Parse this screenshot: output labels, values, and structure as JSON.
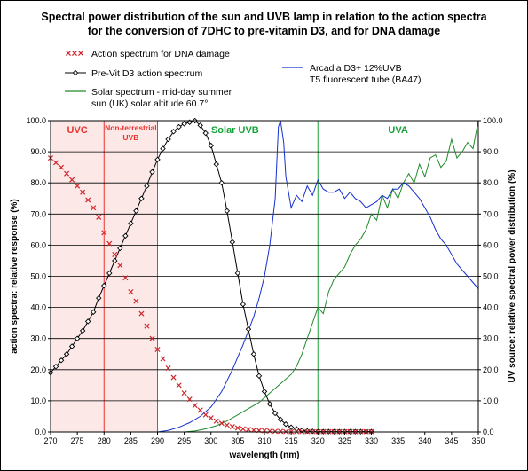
{
  "chart_data": {
    "type": "line",
    "title": "Spectral power distribution of the sun and UVB lamp in relation to the action spectra",
    "subtitle": "for the conversion of 7DHC to pre-vitamin D3, and for DNA damage",
    "xlabel": "wavelength (nm)",
    "ylabel_left": "action spectra: relative response (%)",
    "ylabel_right": "UV source: relative spectral power distribution (%)",
    "xlim": [
      270,
      350
    ],
    "ylim": [
      0,
      100
    ],
    "x_ticks": [
      "270",
      "275",
      "280",
      "285",
      "290",
      "295",
      "300",
      "305",
      "310",
      "315",
      "320",
      "325",
      "330",
      "335",
      "340",
      "345",
      "350"
    ],
    "y_ticks_left": [
      "0.0",
      "10.0",
      "20.0",
      "30.0",
      "40.0",
      "50.0",
      "60.0",
      "70.0",
      "80.0",
      "90.0",
      "100.0"
    ],
    "y_ticks_right": [
      "0.0",
      "10.0",
      "20.0",
      "30.0",
      "40.0",
      "50.0",
      "60.0",
      "70.0",
      "80.0",
      "90.0",
      "100.0"
    ],
    "grid": "horizontal",
    "regions": [
      {
        "label": "UVC",
        "from": 270,
        "to": 280,
        "color": "#fde8e8",
        "text_color": "#e8332f"
      },
      {
        "label": "Non-terrestrial UVB",
        "from": 280,
        "to": 290,
        "color": "#fde8e8",
        "text_color": "#e8332f"
      },
      {
        "label": "Solar UVB",
        "from": 290,
        "to": 320,
        "color": "#ffffff",
        "text_color": "#16a339"
      },
      {
        "label": "UVA",
        "from": 320,
        "to": 350,
        "color": "#ffffff",
        "text_color": "#16a339"
      }
    ],
    "series": [
      {
        "name": "Action spectrum for DNA damage",
        "color": "#d0262c",
        "marker": "x",
        "x": [
          270,
          271,
          272,
          273,
          274,
          275,
          276,
          277,
          278,
          279,
          280,
          281,
          282,
          283,
          284,
          285,
          286,
          287,
          288,
          289,
          290,
          291,
          292,
          293,
          294,
          295,
          296,
          297,
          298,
          299,
          300,
          301,
          302,
          303,
          304,
          305,
          306,
          307,
          308,
          309,
          310,
          311,
          312,
          313,
          314,
          315,
          316,
          317,
          318,
          319,
          320,
          321,
          322,
          323,
          324,
          325,
          326,
          327,
          328,
          329,
          330
        ],
        "y": [
          88,
          86.5,
          85,
          83,
          81,
          79,
          77,
          74.5,
          72,
          69,
          64,
          60.5,
          57,
          53.5,
          49.5,
          45,
          42,
          38,
          34,
          30,
          26.5,
          23.5,
          20.5,
          17.5,
          15,
          12.5,
          10.5,
          8.5,
          7,
          5.5,
          4.5,
          3.5,
          2.8,
          2.2,
          1.7,
          1.3,
          1,
          0.8,
          0.6,
          0.5,
          0.4,
          0.3,
          0.2,
          0.2,
          0.1,
          0.1,
          0.1,
          0.1,
          0.1,
          0.1,
          0.1,
          0.1,
          0.1,
          0.1,
          0.1,
          0.1,
          0.1,
          0.1,
          0.1,
          0.1,
          0.1
        ]
      },
      {
        "name": "Pre-Vit D3 action spectrum",
        "color": "#000000",
        "marker": "diamond",
        "x": [
          270,
          271,
          272,
          273,
          274,
          275,
          276,
          277,
          278,
          279,
          280,
          281,
          282,
          283,
          284,
          285,
          286,
          287,
          288,
          289,
          290,
          291,
          292,
          293,
          294,
          295,
          296,
          297,
          298,
          299,
          300,
          301,
          302,
          303,
          304,
          305,
          306,
          307,
          308,
          309,
          310,
          311,
          312,
          313,
          314,
          315,
          316,
          317,
          318,
          319,
          320,
          321,
          322,
          323,
          324,
          325,
          326,
          327,
          328,
          329,
          330
        ],
        "y": [
          19,
          21,
          23,
          25,
          27.5,
          30,
          32.5,
          35.5,
          38.5,
          43,
          47,
          51,
          55,
          59,
          63,
          67,
          71,
          75,
          79,
          83.5,
          87.5,
          91,
          94,
          96.5,
          98,
          99,
          99.5,
          100,
          98.5,
          96,
          92,
          86,
          80,
          71,
          61,
          51,
          41,
          33,
          25,
          18,
          13,
          9,
          6,
          4,
          2.5,
          1.5,
          1,
          0.5,
          0.3,
          0.2,
          0.1,
          0.1,
          0.1,
          0.1,
          0.1,
          0.1,
          0.1,
          0.1,
          0.1,
          0.1,
          0.1
        ]
      },
      {
        "name": "Solar spectrum - mid-day summer sun (UK)  solar altitude 60.7°",
        "color": "#1f8a2a",
        "marker": "none",
        "x": [
          295,
          297,
          299,
          301,
          303,
          305,
          307,
          309,
          310,
          311,
          312,
          313,
          314,
          315,
          316,
          317,
          318,
          319,
          320,
          321,
          322,
          323,
          324,
          325,
          326,
          327,
          328,
          329,
          330,
          331,
          332,
          333,
          334,
          335,
          336,
          337,
          338,
          339,
          340,
          341,
          342,
          343,
          344,
          345,
          346,
          347,
          348,
          349,
          350
        ],
        "y": [
          0,
          0.3,
          1,
          2,
          3.5,
          5.5,
          7.5,
          9.5,
          11,
          12.5,
          14,
          15.5,
          17,
          18.5,
          21,
          25,
          30,
          35,
          40,
          38,
          45,
          49,
          51,
          53,
          57,
          60,
          62,
          65,
          70,
          68,
          76,
          72,
          78,
          75,
          80,
          83,
          80,
          86,
          82,
          88,
          89,
          85,
          87,
          94,
          88,
          90,
          93,
          91,
          100
        ]
      },
      {
        "name": "Arcadia D3+ 12%UVB T5 fluorescent tube (BA47)",
        "color": "#1530d0",
        "marker": "none",
        "x": [
          290,
          292,
          294,
          296,
          298,
          300,
          302,
          304,
          306,
          308,
          309,
          310,
          311,
          312,
          312.6,
          313,
          313.6,
          314,
          315,
          316,
          317,
          318,
          319,
          320,
          321,
          322,
          323,
          324,
          325,
          326,
          327,
          328,
          329,
          330,
          331,
          332,
          333,
          334,
          335,
          336,
          337,
          338,
          339,
          340,
          341,
          342,
          343,
          344,
          345,
          346,
          347,
          348,
          349,
          350
        ],
        "y": [
          0,
          0.5,
          1.5,
          3,
          5,
          8,
          13,
          20,
          28,
          37,
          43,
          50,
          60,
          75,
          98,
          100,
          93,
          82,
          72,
          76,
          74,
          79,
          76,
          81,
          78,
          77,
          77,
          78,
          75,
          77,
          75,
          74,
          72,
          73,
          74,
          76,
          75,
          78,
          78,
          80,
          79,
          77,
          75,
          72,
          69,
          65,
          62,
          60,
          57,
          54,
          52,
          50,
          48,
          46
        ]
      }
    ],
    "legend": [
      "Action spectrum for DNA damage",
      "Pre-Vit D3 action spectrum",
      "Solar spectrum - mid-day summer",
      "sun (UK)  solar altitude 60.7°",
      "Arcadia D3+ 12%UVB",
      "T5 fluorescent tube (BA47)"
    ]
  }
}
